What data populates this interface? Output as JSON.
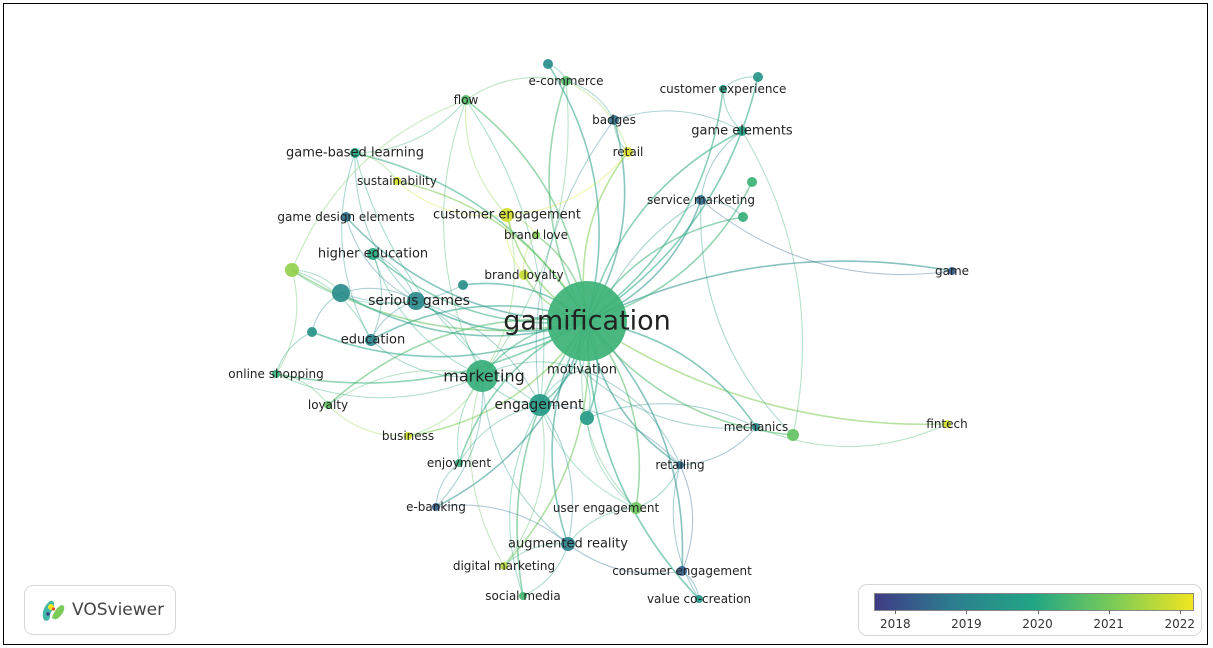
{
  "app": {
    "name": "VOSviewer"
  },
  "network": {
    "color_scale": [
      "#3f3b86",
      "#2c7f8f",
      "#22a684",
      "#7acb57",
      "#f1e51f"
    ],
    "nodes": [
      {
        "id": "gamification",
        "label": "gamification",
        "year": 2020.3
      },
      {
        "id": "marketing",
        "label": "marketing",
        "year": 2020.2
      },
      {
        "id": "engagement",
        "label": "engagement",
        "year": 2019.6
      },
      {
        "id": "motivation",
        "label": "motivation",
        "year": 2020.0
      },
      {
        "id": "serious-games",
        "label": "serious games",
        "year": 2019.1
      },
      {
        "id": "education",
        "label": "education",
        "year": 2019.0
      },
      {
        "id": "higher-education",
        "label": "higher education",
        "year": 2020.0
      },
      {
        "id": "game-based-learning",
        "label": "game-based learning",
        "year": 2020.0
      },
      {
        "id": "game-design-elements",
        "label": "game design elements",
        "year": 2018.6
      },
      {
        "id": "sustainability",
        "label": "sustainability",
        "year": 2021.9
      },
      {
        "id": "customer-engagement",
        "label": "customer engagement",
        "year": 2021.9
      },
      {
        "id": "brand-love",
        "label": "brand love",
        "year": 2021.2
      },
      {
        "id": "brand-loyalty",
        "label": "brand loyalty",
        "year": 2021.8
      },
      {
        "id": "flow",
        "label": "flow",
        "year": 2020.6
      },
      {
        "id": "e-commerce",
        "label": "e-commerce",
        "year": 2020.6
      },
      {
        "id": "badges",
        "label": "badges",
        "year": 2018.6
      },
      {
        "id": "retail",
        "label": "retail",
        "year": 2022.0
      },
      {
        "id": "customer-experience",
        "label": "customer experience",
        "year": 2019.8
      },
      {
        "id": "game-elements",
        "label": "game elements",
        "year": 2019.8
      },
      {
        "id": "service-marketing",
        "label": "service marketing",
        "year": 2018.5
      },
      {
        "id": "game",
        "label": "game",
        "year": 2018.3
      },
      {
        "id": "fintech",
        "label": "fintech",
        "year": 2021.9
      },
      {
        "id": "mechanics",
        "label": "mechanics",
        "year": 2019.0
      },
      {
        "id": "retailing",
        "label": "retailing",
        "year": 2018.5
      },
      {
        "id": "user-engagement",
        "label": "user engagement",
        "year": 2020.9
      },
      {
        "id": "augmented-reality",
        "label": "augmented reality",
        "year": 2018.9
      },
      {
        "id": "consumer-engagement",
        "label": "consumer engagement",
        "year": 2018.3
      },
      {
        "id": "value-co-creation",
        "label": "value co-creation",
        "year": 2019.5
      },
      {
        "id": "digital-marketing",
        "label": "digital marketing",
        "year": 2021.6
      },
      {
        "id": "social-media",
        "label": "social media",
        "year": 2020.4
      },
      {
        "id": "e-banking",
        "label": "e-banking",
        "year": 2018.3
      },
      {
        "id": "enjoyment",
        "label": "enjoyment",
        "year": 2020.2
      },
      {
        "id": "business",
        "label": "business",
        "year": 2021.9
      },
      {
        "id": "loyalty",
        "label": "loyalty",
        "year": 2020.8
      },
      {
        "id": "online-shopping",
        "label": "online shopping",
        "year": 2020.2
      },
      {
        "id": "unlabeled-1",
        "label": "",
        "year": 2019.2
      },
      {
        "id": "unlabeled-2",
        "label": "",
        "year": 2021.3
      },
      {
        "id": "unlabeled-3",
        "label": "",
        "year": 2019.5
      },
      {
        "id": "unlabeled-4",
        "label": "",
        "year": 2019.2
      },
      {
        "id": "unlabeled-5",
        "label": "",
        "year": 2020.3
      },
      {
        "id": "unlabeled-6",
        "label": "",
        "year": 2019.4
      },
      {
        "id": "unlabeled-7",
        "label": "",
        "year": 2019.3
      },
      {
        "id": "unlabeled-8",
        "label": "",
        "year": 2020.2
      },
      {
        "id": "unlabeled-9",
        "label": "",
        "year": 2020.8
      },
      {
        "id": "unlabeled-10",
        "label": "",
        "year": 2019.6
      }
    ],
    "links": [
      [
        "gamification",
        "marketing"
      ],
      [
        "gamification",
        "engagement"
      ],
      [
        "gamification",
        "motivation"
      ],
      [
        "gamification",
        "serious-games"
      ],
      [
        "gamification",
        "education"
      ],
      [
        "gamification",
        "higher-education"
      ],
      [
        "gamification",
        "game-based-learning"
      ],
      [
        "gamification",
        "game-design-elements"
      ],
      [
        "gamification",
        "sustainability"
      ],
      [
        "gamification",
        "customer-engagement"
      ],
      [
        "gamification",
        "brand-love"
      ],
      [
        "gamification",
        "brand-loyalty"
      ],
      [
        "gamification",
        "flow"
      ],
      [
        "gamification",
        "e-commerce"
      ],
      [
        "gamification",
        "badges"
      ],
      [
        "gamification",
        "retail"
      ],
      [
        "gamification",
        "customer-experience"
      ],
      [
        "gamification",
        "game-elements"
      ],
      [
        "gamification",
        "service-marketing"
      ],
      [
        "gamification",
        "game"
      ],
      [
        "gamification",
        "fintech"
      ],
      [
        "gamification",
        "mechanics"
      ],
      [
        "gamification",
        "retailing"
      ],
      [
        "gamification",
        "user-engagement"
      ],
      [
        "gamification",
        "augmented-reality"
      ],
      [
        "gamification",
        "consumer-engagement"
      ],
      [
        "gamification",
        "value-co-creation"
      ],
      [
        "gamification",
        "digital-marketing"
      ],
      [
        "gamification",
        "social-media"
      ],
      [
        "gamification",
        "e-banking"
      ],
      [
        "gamification",
        "enjoyment"
      ],
      [
        "gamification",
        "business"
      ],
      [
        "gamification",
        "loyalty"
      ],
      [
        "gamification",
        "online-shopping"
      ],
      [
        "gamification",
        "unlabeled-1"
      ],
      [
        "gamification",
        "unlabeled-2"
      ],
      [
        "gamification",
        "unlabeled-3"
      ],
      [
        "gamification",
        "unlabeled-4"
      ],
      [
        "gamification",
        "unlabeled-5"
      ],
      [
        "gamification",
        "unlabeled-6"
      ],
      [
        "gamification",
        "unlabeled-7"
      ],
      [
        "gamification",
        "unlabeled-8"
      ],
      [
        "gamification",
        "unlabeled-9"
      ],
      [
        "gamification",
        "unlabeled-10"
      ],
      [
        "marketing",
        "engagement"
      ],
      [
        "marketing",
        "motivation"
      ],
      [
        "marketing",
        "serious-games"
      ],
      [
        "marketing",
        "education"
      ],
      [
        "marketing",
        "loyalty"
      ],
      [
        "marketing",
        "online-shopping"
      ],
      [
        "marketing",
        "enjoyment"
      ],
      [
        "marketing",
        "business"
      ],
      [
        "marketing",
        "customer-engagement"
      ],
      [
        "marketing",
        "e-banking"
      ],
      [
        "marketing",
        "digital-marketing"
      ],
      [
        "marketing",
        "higher-education"
      ],
      [
        "marketing",
        "augmented-reality"
      ],
      [
        "marketing",
        "flow"
      ],
      [
        "marketing",
        "e-commerce"
      ],
      [
        "engagement",
        "motivation"
      ],
      [
        "engagement",
        "user-engagement"
      ],
      [
        "engagement",
        "augmented-reality"
      ],
      [
        "engagement",
        "social-media"
      ],
      [
        "engagement",
        "digital-marketing"
      ],
      [
        "engagement",
        "enjoyment"
      ],
      [
        "engagement",
        "retailing"
      ],
      [
        "engagement",
        "serious-games"
      ],
      [
        "engagement",
        "game-based-learning"
      ],
      [
        "engagement",
        "flow"
      ],
      [
        "engagement",
        "badges"
      ],
      [
        "serious-games",
        "education"
      ],
      [
        "serious-games",
        "game-based-learning"
      ],
      [
        "serious-games",
        "higher-education"
      ],
      [
        "serious-games",
        "game-design-elements"
      ],
      [
        "serious-games",
        "unlabeled-4"
      ],
      [
        "serious-games",
        "unlabeled-2"
      ],
      [
        "education",
        "higher-education"
      ],
      [
        "education",
        "game-based-learning"
      ],
      [
        "education",
        "unlabeled-2"
      ],
      [
        "game-based-learning",
        "sustainability"
      ],
      [
        "game-based-learning",
        "flow"
      ],
      [
        "customer-engagement",
        "brand-love"
      ],
      [
        "customer-engagement",
        "brand-loyalty"
      ],
      [
        "customer-engagement",
        "flow"
      ],
      [
        "customer-engagement",
        "retail"
      ],
      [
        "customer-engagement",
        "sustainability"
      ],
      [
        "brand-love",
        "brand-loyalty"
      ],
      [
        "flow",
        "e-commerce"
      ],
      [
        "flow",
        "unlabeled-2"
      ],
      [
        "e-commerce",
        "badges"
      ],
      [
        "e-commerce",
        "unlabeled-1"
      ],
      [
        "e-commerce",
        "retail"
      ],
      [
        "badges",
        "retail"
      ],
      [
        "badges",
        "game-elements"
      ],
      [
        "customer-experience",
        "game-elements"
      ],
      [
        "customer-experience",
        "unlabeled-3"
      ],
      [
        "game-elements",
        "service-marketing"
      ],
      [
        "game-elements",
        "unlabeled-9"
      ],
      [
        "service-marketing",
        "unlabeled-9"
      ],
      [
        "service-marketing",
        "unlabeled-8"
      ],
      [
        "service-marketing",
        "motivation"
      ],
      [
        "game",
        "service-marketing"
      ],
      [
        "mechanics",
        "fintech"
      ],
      [
        "mechanics",
        "retailing"
      ],
      [
        "mechanics",
        "unlabeled-10"
      ],
      [
        "retailing",
        "consumer-engagement"
      ],
      [
        "retailing",
        "value-co-creation"
      ],
      [
        "retailing",
        "user-engagement"
      ],
      [
        "user-engagement",
        "augmented-reality"
      ],
      [
        "user-engagement",
        "unlabeled-10"
      ],
      [
        "augmented-reality",
        "digital-marketing"
      ],
      [
        "augmented-reality",
        "social-media"
      ],
      [
        "augmented-reality",
        "consumer-engagement"
      ],
      [
        "consumer-engagement",
        "value-co-creation"
      ],
      [
        "enjoyment",
        "e-banking"
      ],
      [
        "business",
        "loyalty"
      ],
      [
        "loyalty",
        "online-shopping"
      ],
      [
        "online-shopping",
        "unlabeled-6"
      ],
      [
        "online-shopping",
        "unlabeled-2"
      ],
      [
        "unlabeled-2",
        "unlabeled-4"
      ],
      [
        "unlabeled-4",
        "unlabeled-7"
      ],
      [
        "unlabeled-6",
        "unlabeled-4"
      ],
      [
        "motivation",
        "mechanics"
      ],
      [
        "motivation",
        "retailing"
      ],
      [
        "motivation",
        "user-engagement"
      ],
      [
        "e-banking",
        "augmented-reality"
      ],
      [
        "unlabeled-10",
        "motivation"
      ]
    ]
  },
  "legend": {
    "ticks": [
      "2018",
      "2019",
      "2020",
      "2021",
      "2022"
    ],
    "range": [
      2017.7,
      2022.2
    ]
  }
}
